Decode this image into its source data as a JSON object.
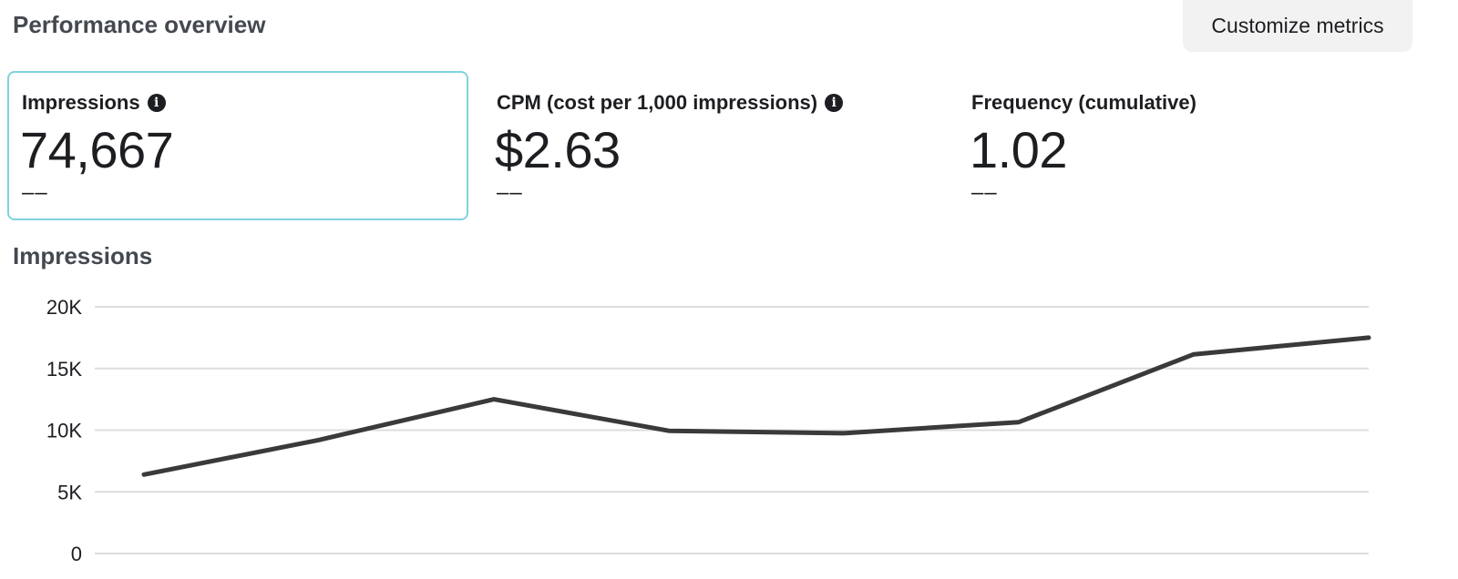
{
  "header": {
    "title": "Performance overview",
    "customize_label": "Customize metrics"
  },
  "metrics": [
    {
      "label": "Impressions",
      "value": "74,667",
      "delta": "––",
      "has_info": true,
      "selected": true
    },
    {
      "label": "CPM (cost per 1,000 impressions)",
      "value": "$2.63",
      "delta": "––",
      "has_info": true,
      "selected": false
    },
    {
      "label": "Frequency (cumulative)",
      "value": "1.02",
      "delta": "––",
      "has_info": false,
      "selected": false
    }
  ],
  "icons": {
    "info": "info-icon"
  },
  "colors": {
    "selected_border": "#7fd3dc",
    "line": "#3a3a3a",
    "grid": "#dddddd",
    "button_bg": "#f2f2f2"
  },
  "chart": {
    "title": "Impressions"
  },
  "chart_data": {
    "type": "line",
    "title": "Impressions",
    "xlabel": "",
    "ylabel": "",
    "ylim": [
      0,
      20000
    ],
    "yticks": [
      0,
      5000,
      10000,
      15000,
      20000
    ],
    "ytick_labels": [
      "0",
      "5K",
      "10K",
      "15K",
      "20K"
    ],
    "grid": true,
    "series": [
      {
        "values": [
          6400,
          9200,
          12500,
          9950,
          9750,
          10650,
          16150,
          17500
        ]
      }
    ]
  }
}
